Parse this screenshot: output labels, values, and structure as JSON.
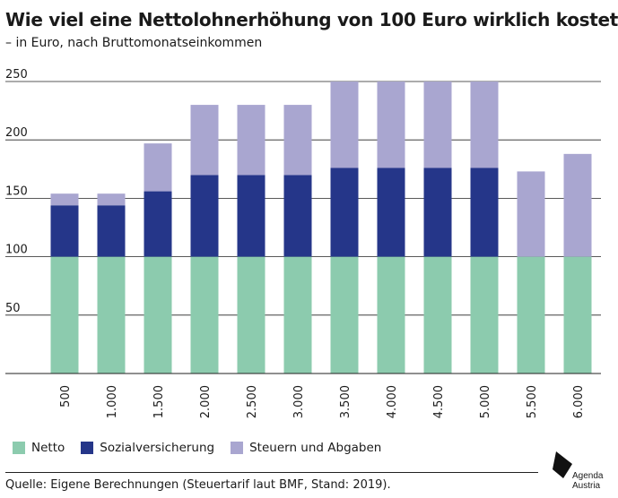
{
  "header": {
    "title": "Wie viel eine Nettolohnerhöhung von 100 Euro wirklich kostet",
    "subtitle": "– in Euro, nach Bruttomonatseinkommen"
  },
  "legend": {
    "items": [
      {
        "label": "Netto",
        "color": "#8ccbae"
      },
      {
        "label": "Sozialversicherung",
        "color": "#253689"
      },
      {
        "label": "Steuern und Abgaben",
        "color": "#a9a6d0"
      }
    ]
  },
  "footer": {
    "source": "Quelle: Eigene Berechnungen (Steuertarif laut BMF, Stand: 2019).",
    "logo_line1": "Agenda",
    "logo_line2": "Austria"
  },
  "chart_data": {
    "type": "bar",
    "stacked": true,
    "categories": [
      "500",
      "1.000",
      "1.500",
      "2.000",
      "2.500",
      "3.000",
      "3.500",
      "4.000",
      "4.500",
      "5.000",
      "5.500",
      "6.000"
    ],
    "series": [
      {
        "name": "Netto",
        "color": "#8ccbae",
        "values": [
          100,
          100,
          100,
          100,
          100,
          100,
          100,
          100,
          100,
          100,
          100,
          100
        ]
      },
      {
        "name": "Sozialversicherung",
        "color": "#253689",
        "values": [
          44,
          44,
          56,
          70,
          70,
          70,
          76,
          76,
          76,
          76,
          0,
          0
        ]
      },
      {
        "name": "Steuern und Abgaben",
        "color": "#a9a6d0",
        "values": [
          10,
          10,
          41,
          60,
          60,
          60,
          74,
          74,
          74,
          74,
          73,
          88
        ]
      }
    ],
    "yticks": [
      50,
      100,
      150,
      200,
      250
    ],
    "ylim": [
      0,
      250
    ],
    "grid": true,
    "legend_position": "bottom-left"
  }
}
